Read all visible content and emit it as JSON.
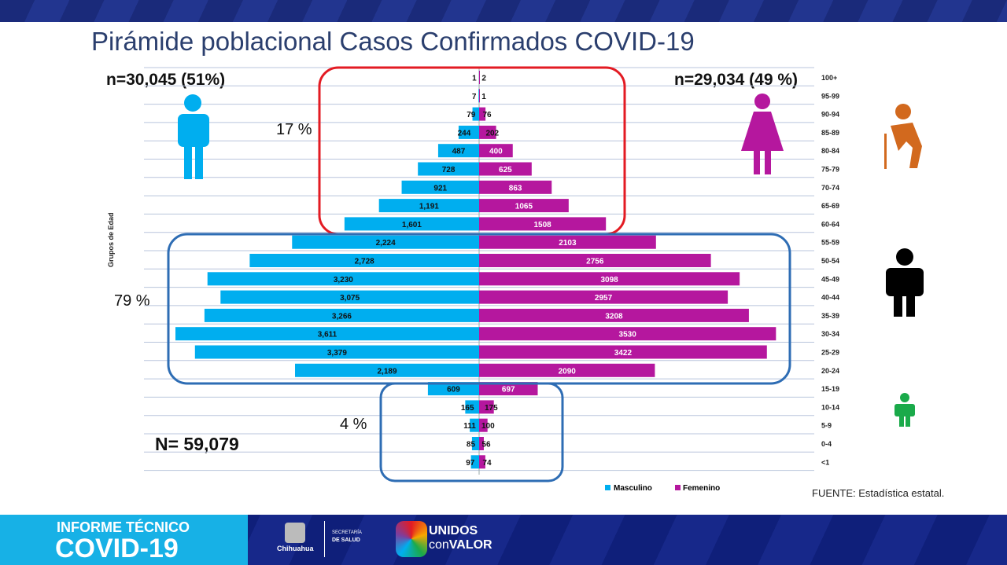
{
  "title": "Pirámide poblacional Casos Confirmados COVID-19",
  "male_total": "n=30,045 (51%)",
  "female_total": "n=29,034 (49 %)",
  "grand_total": "N= 59,079",
  "pct_old": "17 %",
  "pct_adult": "79 %",
  "pct_young": "4 %",
  "source": "FUENTE: Estadística estatal.",
  "colors": {
    "male": "#00aeef",
    "female": "#b5179e",
    "box_old": "#e31b23",
    "box_adult": "#2e6db4",
    "box_young": "#2e6db4"
  },
  "chart_data": {
    "type": "bar",
    "orientation": "horizontal-population-pyramid",
    "ylabel": "Grupos de Edad",
    "categories": [
      "100+",
      "95-99",
      "90-94",
      "85-89",
      "80-84",
      "75-79",
      "70-74",
      "65-69",
      "60-64",
      "55-59",
      "50-54",
      "45-49",
      "40-44",
      "35-39",
      "30-34",
      "25-29",
      "20-24",
      "15-19",
      "10-14",
      "5-9",
      "0-4",
      "<1"
    ],
    "series": [
      {
        "name": "Masculino",
        "values": [
          1,
          7,
          79,
          244,
          487,
          728,
          921,
          1191,
          1601,
          2224,
          2728,
          3230,
          3075,
          3266,
          3611,
          3379,
          2189,
          609,
          165,
          111,
          85,
          97
        ],
        "labels": [
          "1",
          "7",
          "79",
          "244",
          "487",
          "728",
          "921",
          "1,191",
          "1,601",
          "2,224",
          "2,728",
          "3,230",
          "3,075",
          "3,266",
          "3,611",
          "3,379",
          "2,189",
          "609",
          "165",
          "111",
          "85",
          "97"
        ]
      },
      {
        "name": "Femenino",
        "values": [
          2,
          1,
          76,
          202,
          400,
          625,
          863,
          1065,
          1508,
          2103,
          2756,
          3098,
          2957,
          3208,
          3530,
          3422,
          2090,
          697,
          175,
          100,
          56,
          74
        ],
        "labels": [
          "2",
          "1",
          "76",
          "202",
          "400",
          "625",
          "863",
          "1065",
          "1508",
          "2103",
          "2756",
          "3098",
          "2957",
          "3208",
          "3530",
          "3422",
          "2090",
          "697",
          "175",
          "100",
          "56",
          "74"
        ]
      }
    ],
    "legend": "bottom-right"
  },
  "footer": {
    "report_line1": "INFORME TÉCNICO",
    "report_line2": "COVID-19",
    "state": "Chihuahua",
    "secretaria": "SECRETARÍA",
    "salud": "DE SALUD",
    "unidos": "UNIDOS",
    "con": "con",
    "valor": "VALOR"
  }
}
